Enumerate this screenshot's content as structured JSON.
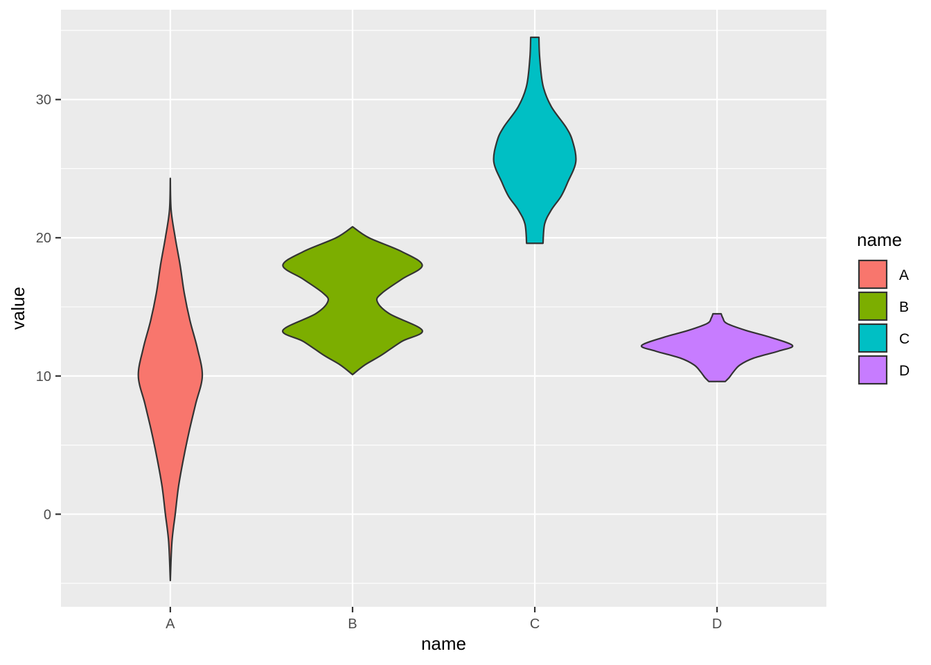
{
  "chart_data": {
    "type": "violin",
    "xlabel": "name",
    "ylabel": "value",
    "categories": [
      "A",
      "B",
      "C",
      "D"
    ],
    "ylim": [
      -6.7,
      36.5
    ],
    "yticks": [
      0,
      10,
      20,
      30
    ],
    "grid": true,
    "legend": {
      "title": "name",
      "placement": "right",
      "entries": [
        "A",
        "B",
        "C",
        "D"
      ]
    },
    "colors": {
      "A": "#F8766D",
      "B": "#7CAE00",
      "C": "#00BFC4",
      "D": "#C77CFF",
      "panel": "#EBEBEB",
      "grid": "#FFFFFF",
      "outline": "#333333"
    },
    "series": [
      {
        "category": "A",
        "min": -4.8,
        "max": 24.3,
        "density_profile": [
          [
            24.3,
            0.0
          ],
          [
            22.0,
            0.01
          ],
          [
            20.0,
            0.06
          ],
          [
            18.0,
            0.12
          ],
          [
            16.0,
            0.17
          ],
          [
            14.0,
            0.24
          ],
          [
            12.0,
            0.33
          ],
          [
            10.0,
            0.39
          ],
          [
            8.0,
            0.31
          ],
          [
            6.0,
            0.23
          ],
          [
            4.0,
            0.16
          ],
          [
            2.0,
            0.1
          ],
          [
            0.0,
            0.06
          ],
          [
            -2.0,
            0.02
          ],
          [
            -4.8,
            0.0
          ]
        ]
      },
      {
        "category": "B",
        "min": 10.1,
        "max": 20.8,
        "density_profile": [
          [
            20.8,
            0.0
          ],
          [
            20.0,
            0.2
          ],
          [
            19.0,
            0.6
          ],
          [
            18.0,
            0.85
          ],
          [
            17.0,
            0.6
          ],
          [
            16.0,
            0.36
          ],
          [
            15.4,
            0.3
          ],
          [
            14.5,
            0.45
          ],
          [
            13.3,
            0.85
          ],
          [
            12.5,
            0.6
          ],
          [
            11.5,
            0.35
          ],
          [
            10.8,
            0.15
          ],
          [
            10.1,
            0.0
          ]
        ]
      },
      {
        "category": "C",
        "min": 19.6,
        "max": 34.5,
        "density_profile": [
          [
            34.5,
            0.05
          ],
          [
            33.0,
            0.06
          ],
          [
            31.0,
            0.1
          ],
          [
            29.5,
            0.2
          ],
          [
            28.0,
            0.38
          ],
          [
            27.0,
            0.46
          ],
          [
            25.5,
            0.5
          ],
          [
            24.0,
            0.4
          ],
          [
            23.0,
            0.32
          ],
          [
            22.0,
            0.2
          ],
          [
            21.0,
            0.12
          ],
          [
            19.6,
            0.1
          ]
        ]
      },
      {
        "category": "D",
        "min": 9.6,
        "max": 14.5,
        "density_profile": [
          [
            14.5,
            0.05
          ],
          [
            14.2,
            0.07
          ],
          [
            13.8,
            0.12
          ],
          [
            13.3,
            0.35
          ],
          [
            12.8,
            0.65
          ],
          [
            12.2,
            0.92
          ],
          [
            11.8,
            0.75
          ],
          [
            11.3,
            0.45
          ],
          [
            10.8,
            0.28
          ],
          [
            10.3,
            0.2
          ],
          [
            9.9,
            0.15
          ],
          [
            9.6,
            0.1
          ]
        ]
      }
    ]
  }
}
